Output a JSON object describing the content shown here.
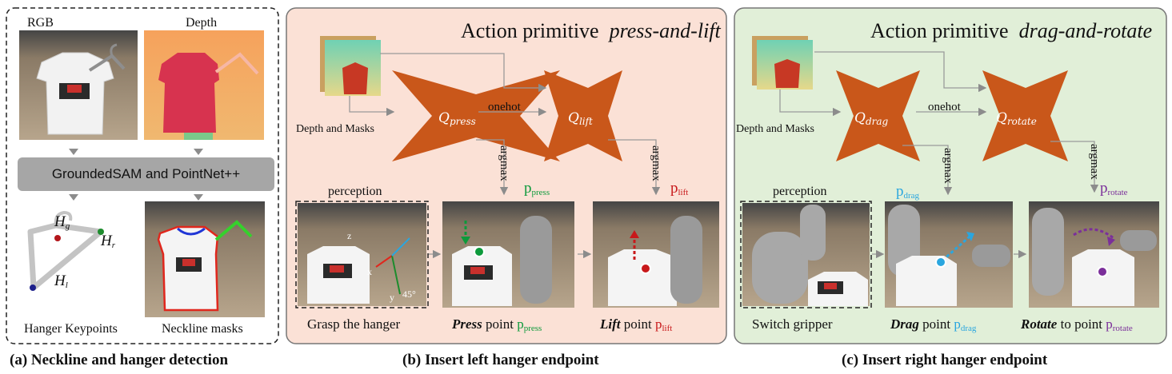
{
  "panel_a": {
    "rgb_label": "RGB",
    "depth_label": "Depth",
    "module_label": "GroundedSAM and PointNet++",
    "keypoints_label": "Hanger Keypoints",
    "masks_label": "Neckline masks",
    "caption": "(a) Neckline and hanger detection",
    "keypoints": [
      "H",
      "H",
      "H"
    ],
    "keypoint_subs": [
      "g",
      "r",
      "l"
    ]
  },
  "panel_b": {
    "title_prefix": "Action primitive",
    "title_name": "press-and-lift",
    "input_label": "Depth and Masks",
    "net1": "Q",
    "net1_sub": "press",
    "net2": "Q",
    "net2_sub": "lift",
    "edge_label": "onehot",
    "argmax1": "argmax",
    "argmax2": "argmax",
    "point1": "p",
    "point1_sub": "press",
    "point2": "p",
    "point2_sub": "lift",
    "perception": "perception",
    "step1": "Grasp the hanger",
    "step2_verb": "Press",
    "step2_rest": " point ",
    "step3_verb": "Lift",
    "step3_rest": " point ",
    "axes": [
      "x",
      "y",
      "z",
      "45°"
    ],
    "caption": "(b) Insert left hanger endpoint"
  },
  "panel_c": {
    "title_prefix": "Action primitive",
    "title_name": "drag-and-rotate",
    "input_label": "Depth and Masks",
    "net1": "Q",
    "net1_sub": "drag",
    "net2": "Q",
    "net2_sub": "rotate",
    "edge_label": "onehot",
    "argmax1": "argmax",
    "argmax2": "argmax",
    "point1": "p",
    "point1_sub": "drag",
    "point2": "p",
    "point2_sub": "rotate",
    "perception": "perception",
    "step1": "Switch gripper",
    "step2_verb": "Drag",
    "step2_rest": " point ",
    "step3_verb": "Rotate",
    "step3_rest": " to point ",
    "caption": "(c) Insert right hanger endpoint"
  },
  "colors": {
    "panel_b_bg": "#fbe1d6",
    "panel_c_bg": "#e1efd8",
    "network": "#c9571a",
    "press_green": "#0d9a3b",
    "lift_red": "#c8181a",
    "drag_blue": "#2aa6df",
    "rotate_purple": "#7b2f9a"
  }
}
